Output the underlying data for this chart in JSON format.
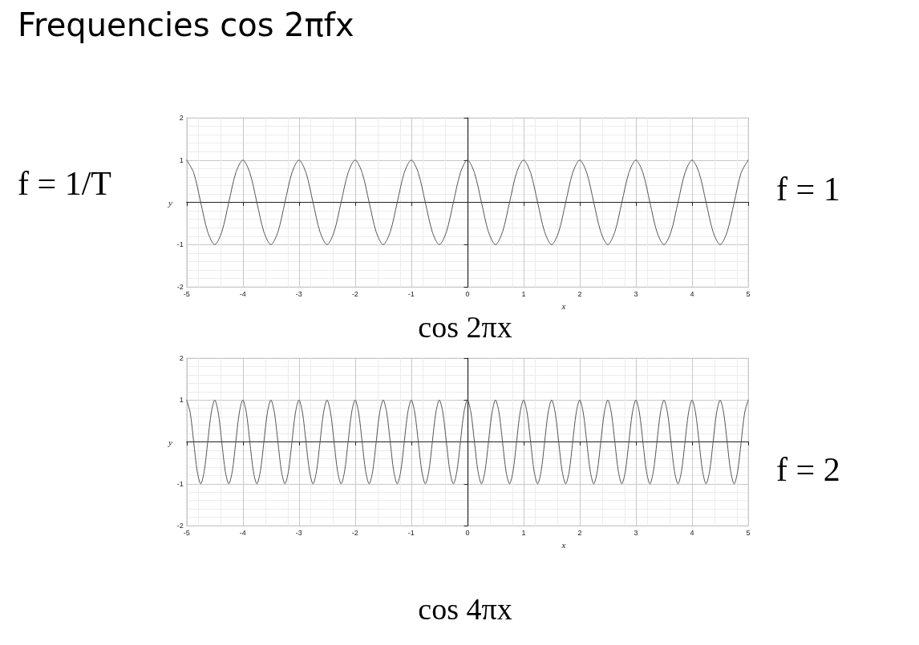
{
  "chart_data": [
    {
      "type": "line",
      "title": "Frequencies  cos 2πfx",
      "xlabel": "x",
      "ylabel": "y",
      "annotations": [
        "f = 1/T",
        "f = 1",
        "cos 2πx"
      ],
      "x": [
        -5,
        -4.875,
        -4.75,
        -4.625,
        -4.5,
        -4.375,
        -4.25,
        -4.125,
        -4,
        -3.875,
        -3.75,
        -3.625,
        -3.5,
        -3.375,
        -3.25,
        -3.125,
        -3,
        -2.875,
        -2.75,
        -2.625,
        -2.5,
        -2.375,
        -2.25,
        -2.125,
        -2,
        -1.875,
        -1.75,
        -1.625,
        -1.5,
        -1.375,
        -1.25,
        -1.125,
        -1,
        -0.875,
        -0.75,
        -0.625,
        -0.5,
        -0.375,
        -0.25,
        -0.125,
        0,
        0.125,
        0.25,
        0.375,
        0.5,
        0.625,
        0.75,
        0.875,
        1,
        1.125,
        1.25,
        1.375,
        1.5,
        1.625,
        1.75,
        1.875,
        2,
        2.125,
        2.25,
        2.375,
        2.5,
        2.625,
        2.75,
        2.875,
        3,
        3.125,
        3.25,
        3.375,
        3.5,
        3.625,
        3.75,
        3.875,
        4,
        4.125,
        4.25,
        4.375,
        4.5,
        4.625,
        4.75,
        4.875,
        5
      ],
      "series": [
        {
          "color": "#555555",
          "values": [
            1,
            0.7,
            0,
            -0.7,
            -1,
            -0.7,
            0,
            0.7,
            1,
            0.7,
            0,
            -0.7,
            -1,
            -0.7,
            0,
            0.7,
            1,
            0.7,
            0,
            -0.7,
            -1,
            -0.7,
            0,
            0.7,
            1,
            0.7,
            0,
            -0.7,
            -1,
            -0.7,
            0,
            0.7,
            1,
            0.7,
            0,
            -0.7,
            -1,
            -0.7,
            0,
            0.7,
            1,
            0.7,
            0,
            -0.7,
            -1,
            -0.7,
            0,
            0.7,
            1,
            0.7,
            0,
            -0.7,
            -1,
            -0.7,
            0,
            0.7,
            1,
            0.7,
            0,
            -0.7,
            -1,
            -0.7,
            0,
            0.7,
            1,
            0.7,
            0,
            -0.7,
            -1,
            -0.7,
            0,
            0.7,
            1,
            0.7,
            0,
            -0.7,
            -1,
            -0.7,
            0,
            0.7,
            1
          ]
        }
      ],
      "xlim": [
        -5,
        5
      ],
      "xticks": [
        -5,
        -4,
        -3,
        -2,
        -1,
        0,
        1,
        2,
        3,
        4,
        5
      ],
      "ylim": [
        -2,
        2
      ],
      "yticks": [
        -2,
        -1,
        {
          "value": 0,
          "label": null
        },
        1,
        2
      ],
      "grid": true,
      "marker": "none",
      "line_style": "solid"
    },
    {
      "type": "line",
      "xlabel": "x",
      "ylabel": "y",
      "annotations": [
        "f = 2",
        "cos 4πx"
      ],
      "series": [
        {
          "color": "#555555",
          "x": [
            -5,
            -4.9375,
            -4.875,
            -4.8125,
            -4.75,
            -4.6875,
            -4.625,
            -4.5625,
            -4.5,
            -4.4375,
            -4.375,
            -4.3125,
            -4.25,
            -4.1875,
            -4.125,
            -4.0625,
            -4,
            -3.9375,
            -3.875,
            -3.8125,
            -3.75,
            -3.6875,
            -3.625,
            -3.5625,
            -3.5,
            -3.4375,
            -3.375,
            -3.3125,
            -3.25,
            -3.1875,
            -3.125,
            -3.0625,
            -3,
            -2.9375,
            -2.875,
            -2.8125,
            -2.75,
            -2.6875,
            -2.625,
            -2.5625,
            -2.5,
            -2.4375,
            -2.375,
            -2.3125,
            -2.25,
            -2.1875,
            -2.125,
            -2.0625,
            -2,
            -1.9375,
            -1.875,
            -1.8125,
            -1.75,
            -1.6875,
            -1.625,
            -1.5625,
            -1.5,
            -1.4375,
            -1.375,
            -1.3125,
            -1.25,
            -1.1875,
            -1.125,
            -1.0625,
            -1,
            -0.9375,
            -0.875,
            -0.8125,
            -0.75,
            -0.6875,
            -0.625,
            -0.5625,
            -0.5,
            -0.4375,
            -0.375,
            -0.3125,
            -0.25,
            -0.1875,
            -0.125,
            -0.0625,
            0,
            0.0625,
            0.125,
            0.1875,
            0.25,
            0.3125,
            0.375,
            0.4375,
            0.5,
            0.5625,
            0.625,
            0.6875,
            0.75,
            0.8125,
            0.875,
            0.9375,
            1,
            1.0625,
            1.125,
            1.1875,
            1.25,
            1.3125,
            1.375,
            1.4375,
            1.5,
            1.5625,
            1.625,
            1.6875,
            1.75,
            1.8125,
            1.875,
            1.9375,
            2,
            2.0625,
            2.125,
            2.1875,
            2.25,
            2.3125,
            2.375,
            2.4375,
            2.5,
            2.5625,
            2.625,
            2.6875,
            2.75,
            2.8125,
            2.875,
            2.9375,
            3,
            3.0625,
            3.125,
            3.1875,
            3.25,
            3.3125,
            3.375,
            3.4375,
            3.5,
            3.5625,
            3.625,
            3.6875,
            3.75,
            3.8125,
            3.875,
            3.9375,
            4,
            4.0625,
            4.125,
            4.1875,
            4.25,
            4.3125,
            4.375,
            4.4375,
            4.5,
            4.5625,
            4.625,
            4.6875,
            4.75,
            4.8125,
            4.875,
            4.9375,
            5
          ],
          "values": [
            1,
            0.7,
            0,
            -0.7,
            -1,
            -0.7,
            0,
            0.7,
            1,
            0.7,
            0,
            -0.7,
            -1,
            -0.7,
            0,
            0.7,
            1,
            0.7,
            0,
            -0.7,
            -1,
            -0.7,
            0,
            0.7,
            1,
            0.7,
            0,
            -0.7,
            -1,
            -0.7,
            0,
            0.7,
            1,
            0.7,
            0,
            -0.7,
            -1,
            -0.7,
            0,
            0.7,
            1,
            0.7,
            0,
            -0.7,
            -1,
            -0.7,
            0,
            0.7,
            1,
            0.7,
            0,
            -0.7,
            -1,
            -0.7,
            0,
            0.7,
            1,
            0.7,
            0,
            -0.7,
            -1,
            -0.7,
            0,
            0.7,
            1,
            0.7,
            0,
            -0.7,
            -1,
            -0.7,
            0,
            0.7,
            1,
            0.7,
            0,
            -0.7,
            -1,
            -0.7,
            0,
            0.7,
            1,
            0.7,
            0,
            -0.7,
            -1,
            -0.7,
            0,
            0.7,
            1,
            0.7,
            0,
            -0.7,
            -1,
            -0.7,
            0,
            0.7,
            1,
            0.7,
            0,
            -0.7,
            -1,
            -0.7,
            0,
            0.7,
            1,
            0.7,
            0,
            -0.7,
            -1,
            -0.7,
            0,
            0.7,
            1,
            0.7,
            0,
            -0.7,
            -1,
            -0.7,
            0,
            0.7,
            1,
            0.7,
            0,
            -0.7,
            -1,
            -0.7,
            0,
            0.7,
            1,
            0.7,
            0,
            -0.7,
            -1,
            -0.7,
            0,
            0.7,
            1,
            0.7,
            0,
            -0.7,
            -1,
            -0.7,
            0,
            0.7,
            1,
            0.7,
            0,
            -0.7,
            -1,
            -0.7,
            0,
            0.7,
            1,
            0.7,
            0,
            -0.7,
            -1,
            -0.7,
            0,
            0.7,
            1
          ]
        }
      ],
      "xlim": [
        -5,
        5
      ],
      "xticks": [
        -5,
        -4,
        -3,
        -2,
        -1,
        0,
        1,
        2,
        3,
        4,
        5
      ],
      "ylim": [
        -2,
        2
      ],
      "yticks": [
        -2,
        -1,
        {
          "value": 0,
          "label": null
        },
        1,
        2
      ],
      "grid": true,
      "marker": "none",
      "line_style": "solid"
    }
  ]
}
